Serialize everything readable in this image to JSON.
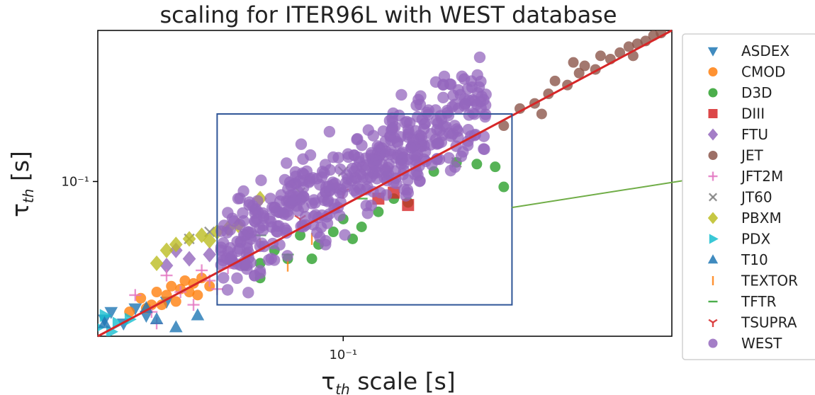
{
  "chart_data": {
    "type": "scatter",
    "title": "scaling for ITER96L with WEST database",
    "xlabel": {
      "symbol": "τ",
      "sub": "th",
      "rest": " scale [s]"
    },
    "ylabel": {
      "symbol": "τ",
      "sub": "th",
      "rest": " [s]"
    },
    "log_x": true,
    "log_y": true,
    "xlim": [
      0.028,
      0.55
    ],
    "ylim": [
      0.023,
      0.42
    ],
    "xticks": [
      {
        "value": 0.1,
        "label": "10⁻¹"
      }
    ],
    "yticks": [
      {
        "value": 0.1,
        "label": "10⁻¹"
      }
    ],
    "grid": false,
    "legend_position": "right",
    "fit_line": {
      "x": [
        0.028,
        0.55
      ],
      "y": [
        0.023,
        0.42
      ],
      "color": "#d62728"
    },
    "zoom_box": {
      "x": [
        0.052,
        0.24
      ],
      "y": [
        0.031,
        0.19
      ],
      "color": "#2f5597"
    },
    "callout_line_color": "#70ad47",
    "series": [
      {
        "name": "ASDEX",
        "marker": "triangle-down",
        "color": "#1f77b4",
        "points": [
          [
            0.029,
            0.027
          ],
          [
            0.03,
            0.029
          ],
          [
            0.032,
            0.026
          ],
          [
            0.034,
            0.03
          ],
          [
            0.036,
            0.028
          ],
          [
            0.04,
            0.032
          ]
        ]
      },
      {
        "name": "CMOD",
        "marker": "circle",
        "color": "#ff7f0e",
        "points": [
          [
            0.033,
            0.029
          ],
          [
            0.035,
            0.033
          ],
          [
            0.037,
            0.031
          ],
          [
            0.038,
            0.035
          ],
          [
            0.04,
            0.034
          ],
          [
            0.041,
            0.037
          ],
          [
            0.042,
            0.032
          ],
          [
            0.043,
            0.036
          ],
          [
            0.044,
            0.039
          ],
          [
            0.045,
            0.035
          ],
          [
            0.046,
            0.038
          ],
          [
            0.047,
            0.034
          ],
          [
            0.048,
            0.04
          ],
          [
            0.05,
            0.037
          ],
          [
            0.036,
            0.03
          ],
          [
            0.039,
            0.031
          ]
        ]
      },
      {
        "name": "D3D",
        "marker": "circle",
        "color": "#2ca02c",
        "points": [
          [
            0.06,
            0.045
          ],
          [
            0.065,
            0.04
          ],
          [
            0.07,
            0.052
          ],
          [
            0.075,
            0.048
          ],
          [
            0.08,
            0.06
          ],
          [
            0.088,
            0.055
          ],
          [
            0.095,
            0.062
          ],
          [
            0.1,
            0.07
          ],
          [
            0.11,
            0.065
          ],
          [
            0.12,
            0.075
          ],
          [
            0.13,
            0.085
          ],
          [
            0.14,
            0.082
          ],
          [
            0.16,
            0.11
          ],
          [
            0.18,
            0.12
          ],
          [
            0.2,
            0.118
          ],
          [
            0.22,
            0.115
          ],
          [
            0.23,
            0.095
          ],
          [
            0.085,
            0.048
          ],
          [
            0.105,
            0.058
          ],
          [
            0.065,
            0.046
          ]
        ]
      },
      {
        "name": "DIII",
        "marker": "square",
        "color": "#d62728",
        "points": [
          [
            0.12,
            0.085
          ],
          [
            0.13,
            0.09
          ],
          [
            0.14,
            0.08
          ]
        ]
      },
      {
        "name": "FTU",
        "marker": "diamond",
        "color": "#9467bd",
        "points": [
          [
            0.04,
            0.045
          ],
          [
            0.045,
            0.048
          ],
          [
            0.05,
            0.05
          ],
          [
            0.042,
            0.052
          ]
        ]
      },
      {
        "name": "JET",
        "marker": "circle",
        "color": "#8c564b",
        "points": [
          [
            0.23,
            0.17
          ],
          [
            0.25,
            0.2
          ],
          [
            0.27,
            0.21
          ],
          [
            0.29,
            0.23
          ],
          [
            0.3,
            0.26
          ],
          [
            0.32,
            0.25
          ],
          [
            0.34,
            0.28
          ],
          [
            0.35,
            0.3
          ],
          [
            0.37,
            0.29
          ],
          [
            0.38,
            0.33
          ],
          [
            0.4,
            0.32
          ],
          [
            0.42,
            0.34
          ],
          [
            0.44,
            0.36
          ],
          [
            0.46,
            0.37
          ],
          [
            0.48,
            0.38
          ],
          [
            0.5,
            0.4
          ],
          [
            0.52,
            0.41
          ],
          [
            0.33,
            0.31
          ],
          [
            0.28,
            0.19
          ],
          [
            0.45,
            0.33
          ]
        ]
      },
      {
        "name": "JFT2M",
        "marker": "plus",
        "color": "#e377c2",
        "points": [
          [
            0.034,
            0.034
          ],
          [
            0.037,
            0.029
          ],
          [
            0.04,
            0.041
          ],
          [
            0.043,
            0.035
          ],
          [
            0.046,
            0.031
          ],
          [
            0.048,
            0.043
          ],
          [
            0.05,
            0.039
          ],
          [
            0.052,
            0.036
          ],
          [
            0.055,
            0.044
          ],
          [
            0.038,
            0.026
          ]
        ]
      },
      {
        "name": "JT60",
        "marker": "x",
        "color": "#7f7f7f",
        "points": [
          [
            0.045,
            0.058
          ],
          [
            0.05,
            0.062
          ],
          [
            0.06,
            0.06
          ],
          [
            0.08,
            0.09
          ],
          [
            0.1,
            0.11
          ],
          [
            0.15,
            0.14
          ],
          [
            0.18,
            0.12
          ]
        ]
      },
      {
        "name": "PBXM",
        "marker": "diamond",
        "color": "#bcbd22",
        "points": [
          [
            0.038,
            0.046
          ],
          [
            0.04,
            0.052
          ],
          [
            0.042,
            0.055
          ],
          [
            0.045,
            0.058
          ],
          [
            0.048,
            0.06
          ],
          [
            0.05,
            0.057
          ],
          [
            0.052,
            0.062
          ],
          [
            0.055,
            0.064
          ],
          [
            0.058,
            0.066
          ],
          [
            0.065,
            0.085
          ]
        ]
      },
      {
        "name": "PDX",
        "marker": "triangle-right",
        "color": "#17becf",
        "points": [
          [
            0.028,
            0.025
          ],
          [
            0.029,
            0.028
          ],
          [
            0.03,
            0.024
          ],
          [
            0.031,
            0.026
          ],
          [
            0.033,
            0.027
          ]
        ]
      },
      {
        "name": "T10",
        "marker": "triangle-up",
        "color": "#1f77b4",
        "points": [
          [
            0.029,
            0.026
          ],
          [
            0.036,
            0.03
          ],
          [
            0.038,
            0.027
          ],
          [
            0.042,
            0.025
          ],
          [
            0.047,
            0.028
          ]
        ]
      },
      {
        "name": "TEXTOR",
        "marker": "vline",
        "color": "#ff7f0e",
        "points": [
          [
            0.06,
            0.05
          ],
          [
            0.065,
            0.055
          ],
          [
            0.075,
            0.045
          ],
          [
            0.085,
            0.058
          ]
        ]
      },
      {
        "name": "TFTR",
        "marker": "hline",
        "color": "#2ca02c",
        "points": [
          [
            0.065,
            0.06
          ],
          [
            0.075,
            0.05
          ],
          [
            0.09,
            0.07
          ],
          [
            0.11,
            0.085
          ]
        ]
      },
      {
        "name": "TSUPRA",
        "marker": "tri-down",
        "color": "#d62728",
        "points": [
          [
            0.08,
            0.07
          ],
          [
            0.1,
            0.09
          ]
        ]
      },
      {
        "name": "WEST",
        "marker": "circle",
        "color": "#9467bd",
        "points": []
      }
    ]
  }
}
